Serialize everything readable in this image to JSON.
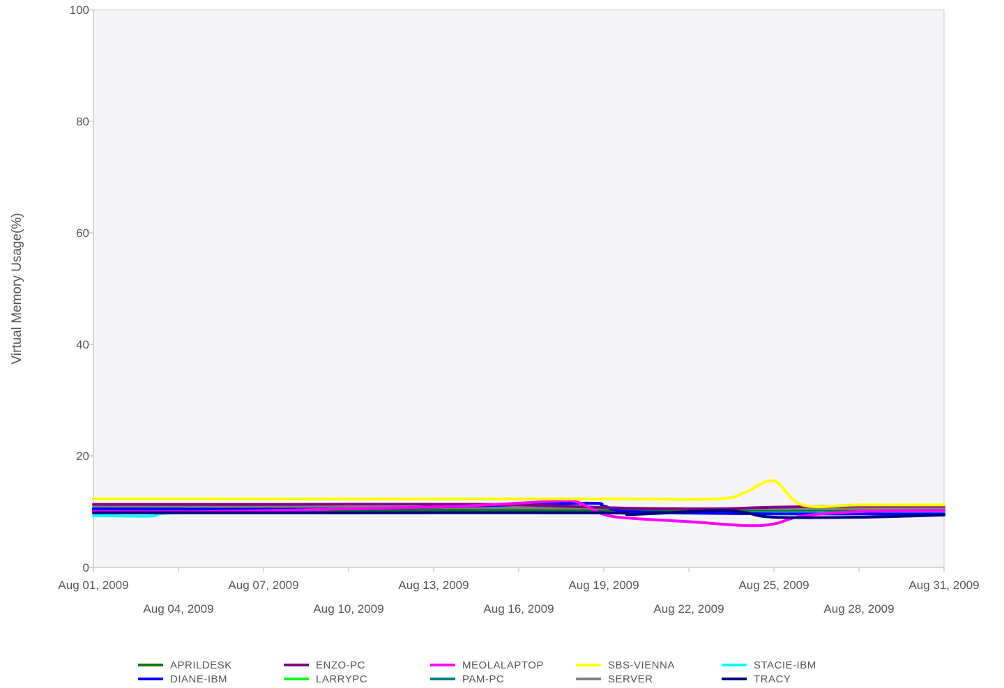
{
  "chart_data": {
    "type": "line",
    "ylabel": "Virtual Memory Usage(%)",
    "xlabel": "",
    "ylim": [
      0,
      100
    ],
    "yticks": [
      0,
      20,
      40,
      60,
      80,
      100
    ],
    "xlim": [
      "2009-08-01",
      "2009-08-31"
    ],
    "xticks": [
      {
        "date": "2009-08-01",
        "label": "Aug 01, 2009"
      },
      {
        "date": "2009-08-04",
        "label": "Aug 04, 2009"
      },
      {
        "date": "2009-08-07",
        "label": "Aug 07, 2009"
      },
      {
        "date": "2009-08-10",
        "label": "Aug 10, 2009"
      },
      {
        "date": "2009-08-13",
        "label": "Aug 13, 2009"
      },
      {
        "date": "2009-08-16",
        "label": "Aug 16, 2009"
      },
      {
        "date": "2009-08-19",
        "label": "Aug 19, 2009"
      },
      {
        "date": "2009-08-22",
        "label": "Aug 22, 2009"
      },
      {
        "date": "2009-08-25",
        "label": "Aug 25, 2009"
      },
      {
        "date": "2009-08-28",
        "label": "Aug 28, 2009"
      },
      {
        "date": "2009-08-31",
        "label": "Aug 31, 2009"
      }
    ],
    "grid": false,
    "legend_position": "bottom",
    "series": [
      {
        "name": "APRILDESK",
        "color": "#007a00",
        "x": [
          "2009-08-01",
          "2009-08-08",
          "2009-08-15",
          "2009-08-20",
          "2009-08-25",
          "2009-08-31"
        ],
        "y": [
          10.3,
          10.3,
          10.4,
          10.3,
          10.4,
          10.3
        ]
      },
      {
        "name": "ENZO-PC",
        "color": "#800080",
        "x": [
          "2009-08-01",
          "2009-08-08",
          "2009-08-15",
          "2009-08-20",
          "2009-08-23",
          "2009-08-25",
          "2009-08-28",
          "2009-08-31"
        ],
        "y": [
          11.3,
          11.3,
          11.3,
          10.6,
          10.5,
          10.8,
          11.0,
          11.0
        ]
      },
      {
        "name": "MEOLALAPTOP",
        "color": "#ff00ff",
        "x": [
          "2009-08-01",
          "2009-08-05",
          "2009-08-10",
          "2009-08-14",
          "2009-08-17",
          "2009-08-18",
          "2009-08-19",
          "2009-08-20",
          "2009-08-22",
          "2009-08-24",
          "2009-08-25",
          "2009-08-26",
          "2009-08-28",
          "2009-08-31"
        ],
        "y": [
          10.0,
          10.0,
          10.5,
          11.0,
          11.8,
          11.8,
          9.5,
          8.8,
          8.2,
          7.5,
          7.8,
          9.2,
          10.0,
          10.2
        ]
      },
      {
        "name": "SBS-VIENNA",
        "color": "#ffff00",
        "x": [
          "2009-08-01",
          "2009-08-10",
          "2009-08-19",
          "2009-08-23",
          "2009-08-24",
          "2009-08-25",
          "2009-08-26",
          "2009-08-28",
          "2009-08-31"
        ],
        "y": [
          12.3,
          12.3,
          12.3,
          12.3,
          13.5,
          15.5,
          11.2,
          11.2,
          11.2
        ]
      },
      {
        "name": "STACIE-IBM",
        "color": "#00ffff",
        "x": [
          "2009-08-01",
          "2009-08-03",
          "2009-08-04",
          "2009-08-10",
          "2009-08-20",
          "2009-08-25",
          "2009-08-31"
        ],
        "y": [
          9.3,
          9.2,
          9.8,
          9.8,
          9.8,
          9.7,
          9.8
        ]
      },
      {
        "name": "DIANE-IBM",
        "color": "#0000ff",
        "x": [
          "2009-08-01",
          "2009-08-10",
          "2009-08-18",
          "2009-08-19",
          "2009-08-20",
          "2009-08-25",
          "2009-08-31"
        ],
        "y": [
          10.5,
          10.5,
          11.5,
          11.0,
          10.0,
          9.6,
          9.6
        ]
      },
      {
        "name": "LARRYPC",
        "color": "#00ff00",
        "x": [
          "2009-08-01",
          "2009-08-10",
          "2009-08-20",
          "2009-08-25",
          "2009-08-31"
        ],
        "y": [
          10.0,
          10.0,
          10.0,
          10.0,
          10.0
        ]
      },
      {
        "name": "PAM-PC",
        "color": "#008080",
        "x": [
          "2009-08-01",
          "2009-08-10",
          "2009-08-20",
          "2009-08-25",
          "2009-08-31"
        ],
        "y": [
          10.2,
          10.2,
          10.1,
          10.0,
          10.1
        ]
      },
      {
        "name": "SERVER",
        "color": "#808080",
        "x": [
          "2009-08-01",
          "2009-08-10",
          "2009-08-20",
          "2009-08-25",
          "2009-08-31"
        ],
        "y": [
          10.8,
          10.8,
          10.6,
          10.5,
          10.6
        ]
      },
      {
        "name": "TRACY",
        "color": "#000080",
        "x": [
          "2009-08-01",
          "2009-08-10",
          "2009-08-19",
          "2009-08-20",
          "2009-08-23",
          "2009-08-24",
          "2009-08-25",
          "2009-08-28",
          "2009-08-31"
        ],
        "y": [
          9.8,
          9.8,
          9.8,
          9.5,
          10.2,
          9.8,
          9.0,
          9.0,
          9.4
        ]
      }
    ]
  }
}
